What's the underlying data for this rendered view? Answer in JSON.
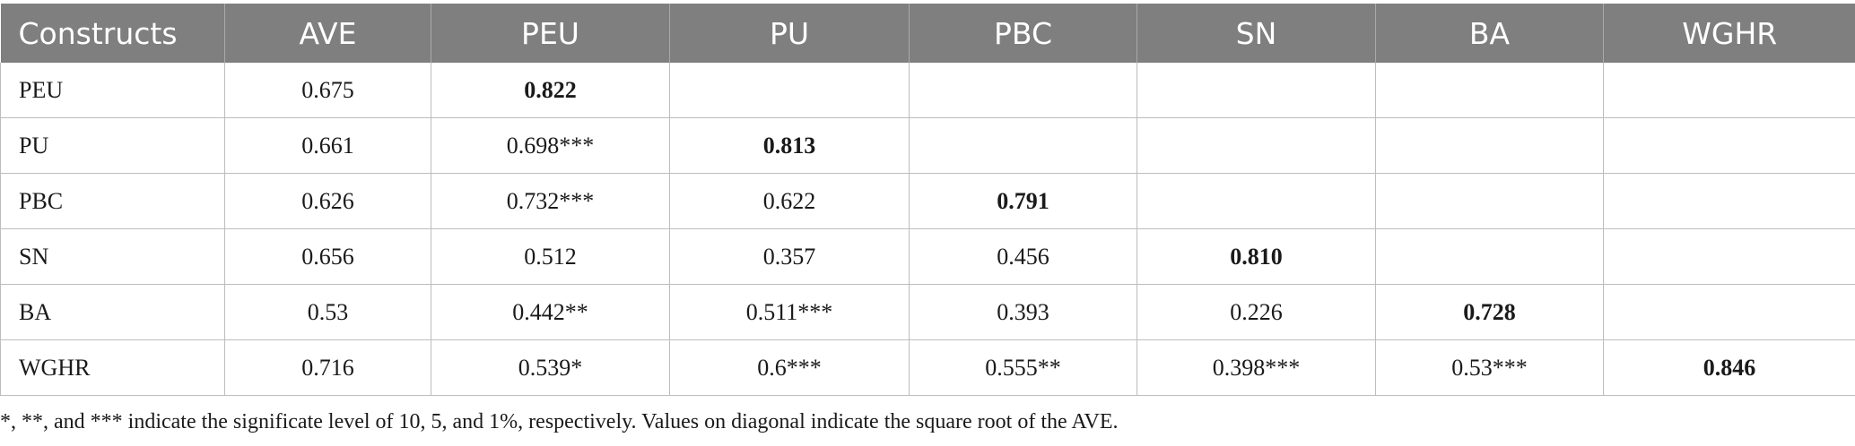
{
  "table": {
    "headers": [
      "Constructs",
      "AVE",
      "PEU",
      "PU",
      "PBC",
      "SN",
      "BA",
      "WGHR"
    ],
    "rows": [
      {
        "construct": "PEU",
        "ave": "0.675",
        "cells": [
          "0.822",
          "",
          "",
          "",
          "",
          ""
        ],
        "diag_index": 0
      },
      {
        "construct": "PU",
        "ave": "0.661",
        "cells": [
          "0.698***",
          "0.813",
          "",
          "",
          "",
          ""
        ],
        "diag_index": 1
      },
      {
        "construct": "PBC",
        "ave": "0.626",
        "cells": [
          "0.732***",
          "0.622",
          "0.791",
          "",
          "",
          ""
        ],
        "diag_index": 2
      },
      {
        "construct": "SN",
        "ave": "0.656",
        "cells": [
          "0.512",
          "0.357",
          "0.456",
          "0.810",
          "",
          ""
        ],
        "diag_index": 3
      },
      {
        "construct": "BA",
        "ave": "0.53",
        "cells": [
          "0.442**",
          "0.511***",
          "0.393",
          "0.226",
          "0.728",
          ""
        ],
        "diag_index": 4
      },
      {
        "construct": "WGHR",
        "ave": "0.716",
        "cells": [
          "0.539*",
          "0.6***",
          "0.555**",
          "0.398***",
          "0.53***",
          "0.846"
        ],
        "diag_index": 5
      }
    ]
  },
  "note": "*, **, and *** indicate the significate level of 10, 5, and 1%, respectively. Values on diagonal indicate the square root of the AVE.",
  "colors": {
    "header_bg": "#7e7f7e",
    "header_text": "#ffffff",
    "grid": "#bdbdbd"
  }
}
